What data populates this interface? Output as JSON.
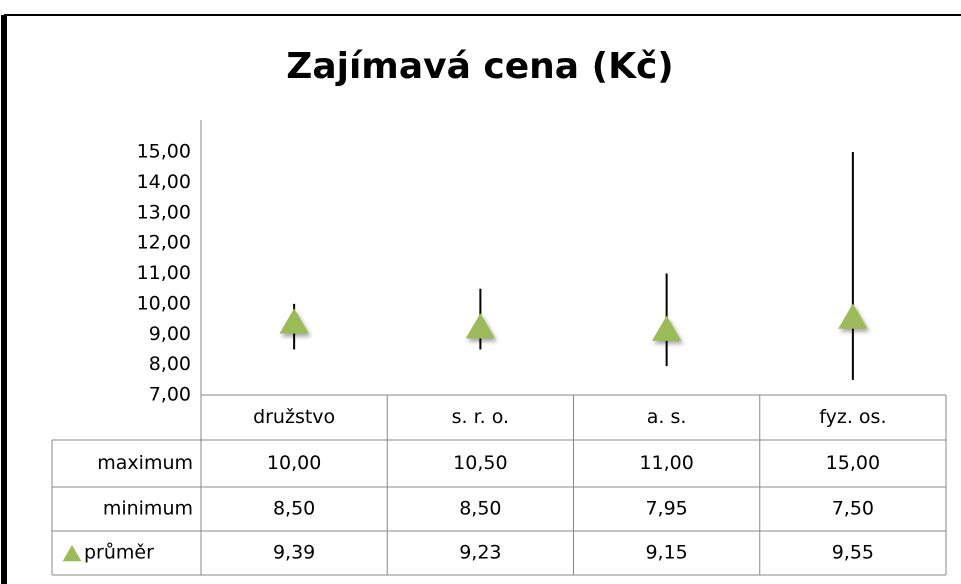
{
  "chart_data": {
    "type": "hilo",
    "title": "Zajímavá cena (Kč)",
    "categories": [
      "družstvo",
      "s. r. o.",
      "a. s.",
      "fyz. os."
    ],
    "series": [
      {
        "name": "maximum",
        "values": [
          10,
          10.5,
          11,
          15
        ],
        "value_labels": [
          "10,00",
          "10,50",
          "11,00",
          "15,00"
        ],
        "color": "#000000"
      },
      {
        "name": "minimum",
        "values": [
          8.5,
          8.5,
          7.95,
          7.5
        ],
        "value_labels": [
          "8,50",
          "8,50",
          "7,95",
          "7,50"
        ],
        "color": "#000000"
      },
      {
        "name": "průměr",
        "values": [
          9.39,
          9.23,
          9.15,
          9.55
        ],
        "value_labels": [
          "9,39",
          "9,23",
          "9,15",
          "9,55"
        ],
        "color": "#9bbb59",
        "marker": "triangle"
      }
    ],
    "ylim": [
      7,
      15
    ],
    "yticks": [
      {
        "value": 7,
        "label": "7,00"
      },
      {
        "value": 8,
        "label": "8,00"
      },
      {
        "value": 9,
        "label": "9,00"
      },
      {
        "value": 10,
        "label": "10,00"
      },
      {
        "value": 11,
        "label": "11,00"
      },
      {
        "value": 12,
        "label": "12,00"
      },
      {
        "value": 13,
        "label": "13,00"
      },
      {
        "value": 14,
        "label": "14,00"
      },
      {
        "value": 15,
        "label": "15,00"
      }
    ],
    "grid": false
  }
}
